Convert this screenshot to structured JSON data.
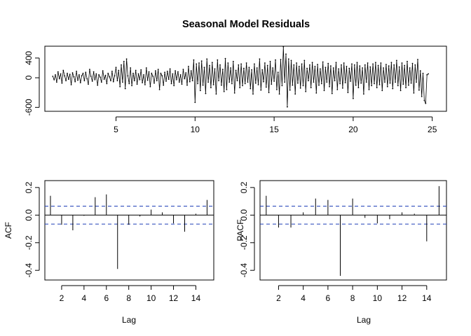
{
  "page": {
    "title": "Seasonal Model Residuals"
  },
  "chart_data": [
    {
      "id": "residuals",
      "type": "line",
      "title": "Seasonal Model Residuals",
      "xlabel": "",
      "ylabel": "",
      "xlim": [
        0.5,
        25.9
      ],
      "ylim": [
        -680,
        640
      ],
      "xticks": [
        5,
        10,
        15,
        20,
        25
      ],
      "yticks": [
        -600,
        0,
        400
      ],
      "ytick_labels": [
        "-600",
        "0",
        "400"
      ],
      "x_start": 1,
      "frequency": 12,
      "marker": "point",
      "grid": false,
      "values": [
        30,
        -40,
        60,
        -90,
        120,
        -20,
        80,
        -110,
        150,
        40,
        -60,
        90,
        -30,
        70,
        -140,
        100,
        20,
        -80,
        130,
        -50,
        60,
        -100,
        40,
        90,
        -60,
        110,
        -20,
        -130,
        170,
        30,
        -70,
        120,
        -40,
        80,
        -150,
        60,
        10,
        -90,
        140,
        -30,
        50,
        -120,
        90,
        20,
        -60,
        130,
        -80,
        40,
        210,
        -60,
        150,
        -180,
        260,
        -90,
        330,
        -220,
        380,
        40,
        -120,
        200,
        -160,
        90,
        -60,
        150,
        -130,
        80,
        -40,
        160,
        -100,
        60,
        -140,
        200,
        -50,
        120,
        -180,
        90,
        30,
        -110,
        140,
        -60,
        170,
        -240,
        90,
        40,
        -150,
        110,
        -70,
        130,
        -30,
        180,
        -120,
        80,
        -160,
        140,
        -40,
        120,
        -90,
        60,
        -130,
        170,
        -20,
        100,
        -150,
        230,
        -80,
        140,
        -60,
        360,
        -500,
        280,
        -120,
        300,
        -260,
        340,
        -150,
        210,
        -320,
        380,
        -90,
        250,
        -200,
        310,
        -140,
        180,
        -330,
        360,
        -60,
        260,
        -150,
        170,
        -280,
        390,
        -240,
        300,
        -90,
        200,
        -120,
        330,
        -310,
        150,
        -60,
        260,
        -200,
        280,
        -160,
        190,
        -120,
        300,
        -90,
        210,
        -220,
        160,
        -330,
        280,
        -110,
        200,
        -140,
        380,
        -250,
        160,
        -80,
        300,
        -190,
        250,
        -300,
        330,
        -130,
        200,
        -70,
        360,
        -240,
        110,
        -330,
        370,
        -160,
        630,
        -90,
        480,
        -590,
        380,
        -250,
        350,
        -150,
        260,
        -330,
        300,
        -110,
        230,
        -210,
        280,
        -160,
        350,
        -280,
        190,
        -60,
        260,
        -200,
        310,
        -90,
        230,
        -310,
        270,
        -150,
        180,
        -120,
        320,
        -260,
        210,
        -90,
        290,
        -180,
        240,
        -320,
        200,
        -60,
        310,
        -240,
        180,
        -120,
        260,
        -210,
        300,
        -100,
        230,
        -300,
        190,
        -70,
        280,
        -420,
        260,
        -150,
        310,
        -200,
        240,
        -110,
        200,
        -330,
        260,
        -90,
        300,
        -240,
        220,
        -160,
        280,
        -120,
        310,
        -200,
        250,
        -140,
        300,
        -260,
        200,
        -90,
        270,
        -180,
        240,
        -110,
        310,
        -220,
        260,
        -90,
        350,
        -160,
        220,
        -260,
        300,
        -130,
        250,
        -200,
        330,
        -150,
        200,
        -110,
        290,
        -310,
        260,
        -90,
        370,
        -250,
        140,
        -380,
        90,
        -460,
        -520,
        60,
        80
      ]
    },
    {
      "id": "acf",
      "type": "bar",
      "title": "",
      "xlabel": "Lag",
      "ylabel": "ACF",
      "xlim": [
        0.5,
        15.6
      ],
      "ylim": [
        -0.47,
        0.25
      ],
      "xticks": [
        2,
        4,
        6,
        8,
        10,
        12,
        14
      ],
      "yticks": [
        -0.4,
        -0.2,
        0.0,
        0.2
      ],
      "ytick_labels": [
        "-0.4",
        "-0.2",
        "0.0",
        "0.2"
      ],
      "ci": 0.065,
      "lags": [
        1,
        2,
        3,
        4,
        5,
        6,
        7,
        8,
        9,
        10,
        11,
        12,
        13,
        14,
        15
      ],
      "values": [
        0.14,
        -0.07,
        -0.11,
        -0.005,
        0.13,
        0.15,
        -0.39,
        -0.07,
        -0.01,
        0.04,
        0.02,
        -0.06,
        -0.12,
        0.01,
        0.11
      ]
    },
    {
      "id": "pacf",
      "type": "bar",
      "title": "",
      "xlabel": "Lag",
      "ylabel": "PACF",
      "xlim": [
        0.5,
        15.6
      ],
      "ylim": [
        -0.47,
        0.25
      ],
      "xticks": [
        2,
        4,
        6,
        8,
        10,
        12,
        14
      ],
      "yticks": [
        -0.4,
        -0.2,
        0.0,
        0.2
      ],
      "ytick_labels": [
        "-0.4",
        "-0.2",
        "0.0",
        "0.2"
      ],
      "ci": 0.065,
      "lags": [
        1,
        2,
        3,
        4,
        5,
        6,
        7,
        8,
        9,
        10,
        11,
        12,
        13,
        14,
        15
      ],
      "values": [
        0.14,
        -0.09,
        -0.09,
        0.02,
        0.12,
        0.11,
        -0.44,
        0.12,
        -0.02,
        -0.06,
        -0.03,
        0.02,
        0.01,
        -0.19,
        0.21
      ]
    }
  ]
}
